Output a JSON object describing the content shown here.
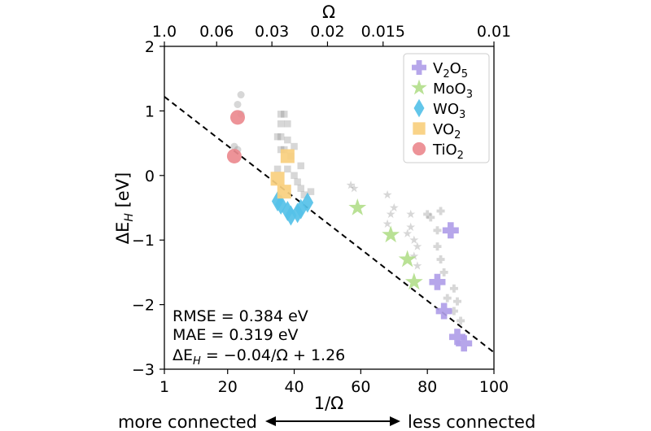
{
  "chart_data": {
    "type": "scatter",
    "title": "",
    "xlabel": "1/Ω",
    "ylabel": "ΔE_H [eV]",
    "top_xlabel": "Ω",
    "xlim": [
      1,
      100
    ],
    "ylim": [
      -3,
      2
    ],
    "x_ticks": [
      1,
      20,
      40,
      60,
      80,
      100
    ],
    "y_ticks": [
      -3,
      -2,
      -1,
      0,
      1,
      2
    ],
    "top_ticks": [
      {
        "label": "1.0",
        "inv_omega": 1
      },
      {
        "label": "0.06",
        "inv_omega": 16.7
      },
      {
        "label": "0.03",
        "inv_omega": 33.3
      },
      {
        "label": "0.02",
        "inv_omega": 50
      },
      {
        "label": "0.015",
        "inv_omega": 66.7
      },
      {
        "label": "0.01",
        "inv_omega": 100
      }
    ],
    "fit_line": {
      "slope": -0.04,
      "intercept": 1.26,
      "style": "dashed",
      "color": "#000000"
    },
    "legend_position": "top-right",
    "series": [
      {
        "name": "V2O5",
        "label_main": "V",
        "label_sub1": "2",
        "label_mid": "O",
        "label_sub2": "5",
        "marker": "plus",
        "color": "#b09ee8",
        "points": [
          [
            87,
            -0.85
          ],
          [
            83,
            -1.65
          ],
          [
            85,
            -2.1
          ],
          [
            89,
            -2.5
          ],
          [
            91,
            -2.6
          ]
        ]
      },
      {
        "name": "MoO3",
        "label_main": "Mo",
        "label_sub1": "",
        "label_mid": "O",
        "label_sub2": "3",
        "marker": "star",
        "color": "#b3de8c",
        "points": [
          [
            59,
            -0.5
          ],
          [
            69,
            -0.92
          ],
          [
            74,
            -1.3
          ],
          [
            76,
            -1.65
          ]
        ]
      },
      {
        "name": "WO3",
        "label_main": "W",
        "label_sub1": "",
        "label_mid": "O",
        "label_sub2": "3",
        "marker": "diamond",
        "color": "#55c1e8",
        "points": [
          [
            35,
            -0.4
          ],
          [
            36,
            -0.45
          ],
          [
            38,
            -0.55
          ],
          [
            39,
            -0.62
          ],
          [
            41,
            -0.58
          ],
          [
            42,
            -0.52
          ],
          [
            44,
            -0.42
          ]
        ]
      },
      {
        "name": "VO2",
        "label_main": "V",
        "label_sub1": "",
        "label_mid": "O",
        "label_sub2": "2",
        "marker": "square",
        "color": "#f9cf7e",
        "points": [
          [
            35,
            -0.05
          ],
          [
            38,
            0.3
          ],
          [
            37,
            -0.25
          ]
        ]
      },
      {
        "name": "TiO2",
        "label_main": "Ti",
        "label_sub1": "",
        "label_mid": "O",
        "label_sub2": "2",
        "marker": "circle",
        "color": "#ec8a8f",
        "points": [
          [
            23,
            0.9
          ],
          [
            22,
            0.3
          ]
        ]
      }
    ],
    "background_points": [
      [
        24,
        1.25
      ],
      [
        23,
        1.1
      ],
      [
        24,
        0.95
      ],
      [
        22,
        0.45
      ],
      [
        23,
        0.4
      ],
      [
        36,
        0.95
      ],
      [
        37,
        0.95
      ],
      [
        36,
        0.8
      ],
      [
        38,
        0.8
      ],
      [
        35,
        0.6
      ],
      [
        36,
        0.6
      ],
      [
        38,
        0.55
      ],
      [
        36,
        0.4
      ],
      [
        37,
        0.4
      ],
      [
        39,
        0.3
      ],
      [
        35,
        0.1
      ],
      [
        38,
        0.1
      ],
      [
        40,
        0.0
      ],
      [
        41,
        -0.1
      ],
      [
        42,
        -0.2
      ],
      [
        43,
        -0.3
      ],
      [
        45,
        -0.25
      ],
      [
        40,
        0.45
      ],
      [
        42,
        0.15
      ],
      [
        57,
        -0.15
      ],
      [
        58,
        -0.2
      ],
      [
        68,
        -0.3
      ],
      [
        69,
        -0.6
      ],
      [
        68,
        -0.75
      ],
      [
        70,
        -0.5
      ],
      [
        75,
        -0.6
      ],
      [
        75,
        -0.8
      ],
      [
        74,
        -0.9
      ],
      [
        76,
        -1.0
      ],
      [
        77,
        -1.1
      ],
      [
        76,
        -1.25
      ],
      [
        77,
        -1.4
      ],
      [
        80,
        -0.6
      ],
      [
        81,
        -0.65
      ],
      [
        84,
        -0.55
      ],
      [
        83,
        -0.85
      ],
      [
        83,
        -1.1
      ],
      [
        84,
        -1.3
      ],
      [
        85,
        -1.5
      ],
      [
        88,
        -1.75
      ],
      [
        89,
        -1.95
      ],
      [
        88,
        -2.1
      ],
      [
        90,
        -2.25
      ],
      [
        86,
        -1.9
      ]
    ],
    "annotations": {
      "rmse": "RMSE = 0.384 eV",
      "mae": "MAE = 0.319 eV",
      "formula_lhs": "ΔE",
      "formula_sub": "H",
      "formula_rhs": " = −0.04/Ω + 1.26"
    },
    "bottom_caption": {
      "left": "more connected",
      "right": "less connected"
    }
  }
}
